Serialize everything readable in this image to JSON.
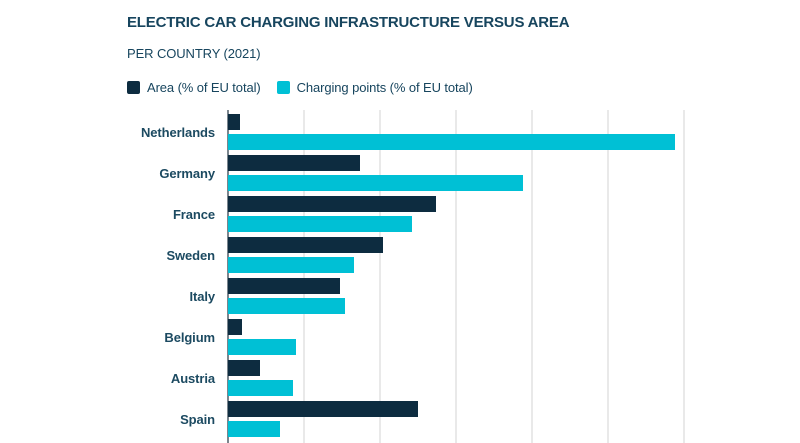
{
  "header": {
    "title": "ELECTRIC CAR CHARGING INFRASTRUCTURE VERSUS AREA",
    "subtitle": "PER COUNTRY (2021)"
  },
  "legend": {
    "items": [
      {
        "label": "Area (% of EU total)",
        "color": "#0d2c40"
      },
      {
        "label": "Charging points (% of EU total)",
        "color": "#00c0d5"
      }
    ]
  },
  "colors": {
    "navy_bar": "#0d2c40",
    "cyan_bar": "#00c0d5",
    "text_navy": "#17455e",
    "label_navy": "#1c4a61",
    "gridline": "#e9e9e9",
    "axis_line": "#7b858d",
    "background": "#ffffff"
  },
  "chart_data": {
    "type": "bar",
    "orientation": "horizontal",
    "title": "ELECTRIC CAR CHARGING INFRASTRUCTURE VERSUS AREA",
    "subtitle": "PER COUNTRY (2021)",
    "categories": [
      "Netherlands",
      "Germany",
      "France",
      "Sweden",
      "Italy",
      "Belgium",
      "Austria",
      "Spain"
    ],
    "series": [
      {
        "name": "Area (% of EU total)",
        "color": "#0d2c40",
        "values": [
          0.8,
          8.7,
          13.7,
          10.2,
          7.4,
          0.9,
          2.1,
          12.5
        ]
      },
      {
        "name": "Charging points (% of EU total)",
        "color": "#00c0d5",
        "values": [
          29.4,
          19.4,
          12.1,
          8.3,
          7.7,
          4.5,
          4.3,
          3.4
        ]
      }
    ],
    "xlabel": "",
    "ylabel": "",
    "xlim": [
      0,
      30
    ],
    "gridline_step": 5,
    "grid": true,
    "x_tick_labels_visible": false,
    "legend_position": "top",
    "units": "% of EU total",
    "note_bottom_cropped": true
  }
}
